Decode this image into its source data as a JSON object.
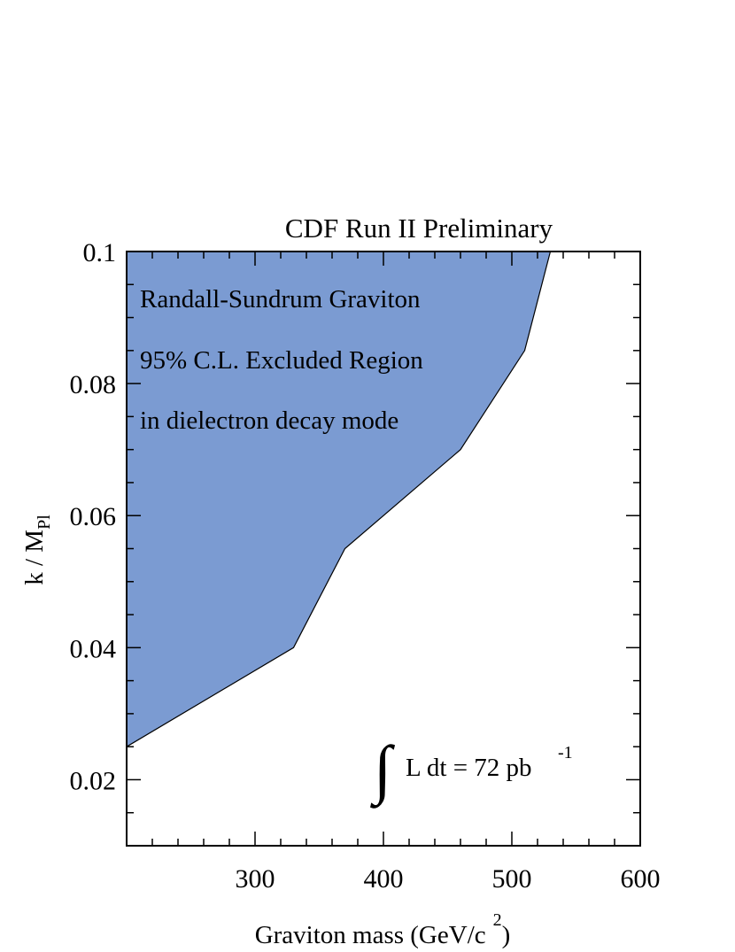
{
  "chart_data": {
    "type": "area",
    "title": "CDF Run II Preliminary",
    "xlabel": {
      "main": "Graviton mass (GeV/c",
      "sup": "2",
      "tail": ")"
    },
    "ylabel": {
      "main": "k / M",
      "sub": "Pl"
    },
    "xlim": [
      200,
      600
    ],
    "ylim": [
      0.01,
      0.1
    ],
    "x_ticks": [
      300,
      400,
      500,
      600
    ],
    "x_tick_labels": [
      "300",
      "400",
      "500",
      "600"
    ],
    "y_ticks": [
      0.02,
      0.04,
      0.06,
      0.08,
      0.1
    ],
    "y_tick_labels": [
      "0.02",
      "0.04",
      "0.06",
      "0.08",
      "0.1"
    ],
    "grid": false,
    "series": [
      {
        "name": "95% C.L. Excluded Region",
        "fill_color": "#7b9bd2",
        "x": [
          200,
          330,
          370,
          460,
          510,
          530
        ],
        "y": [
          0.025,
          0.04,
          0.055,
          0.07,
          0.085,
          0.1
        ]
      }
    ],
    "annotations": [
      "Randall-Sundrum Graviton",
      "95% C.L. Excluded Region",
      "in dielectron decay mode"
    ],
    "luminosity": {
      "symbol": "∫",
      "text": "L dt = 72 pb",
      "sup": "-1"
    }
  }
}
